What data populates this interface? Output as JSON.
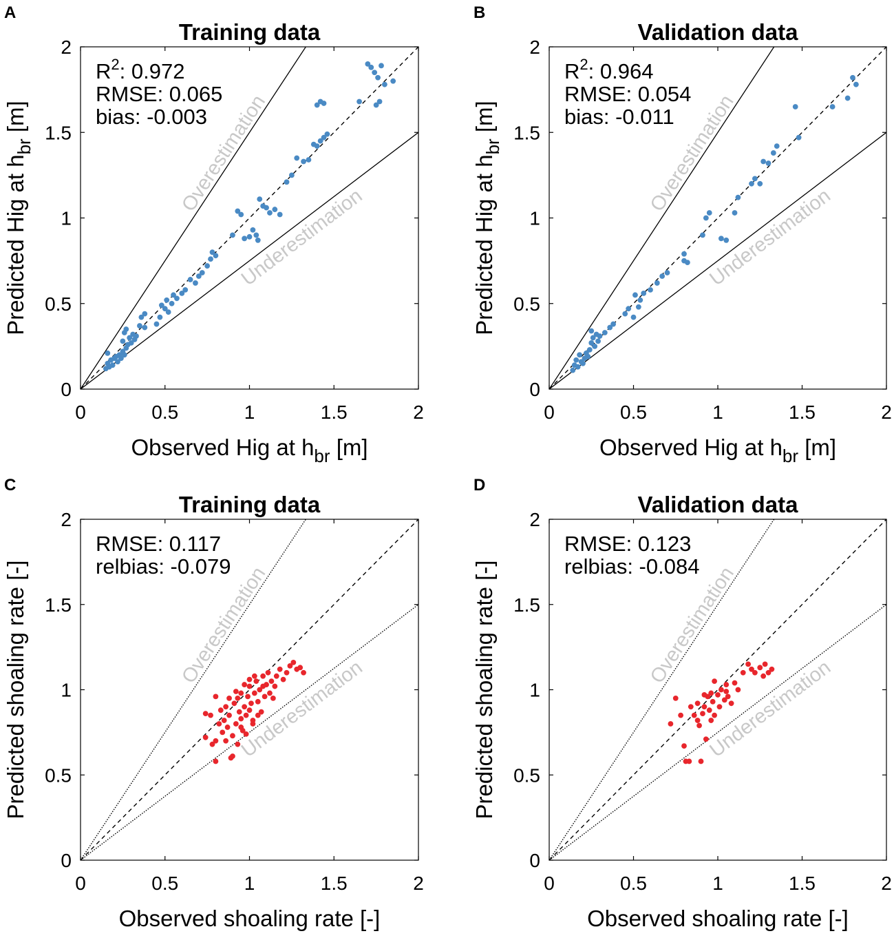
{
  "figure": {
    "colors": {
      "training": "#4a8ac4",
      "validation_shoal": "#e8262c",
      "annotation": "#c8c8c8",
      "axis": "#000000"
    }
  },
  "chart_data": [
    {
      "panel_letter": "A",
      "type": "scatter",
      "title": "Training data",
      "xlabel": "Observed Hig at h",
      "xlabel_sub": "br",
      "xlabel_unit": " [m]",
      "ylabel": "Predicted Hig at h",
      "ylabel_sub": "br",
      "ylabel_unit": " [m]",
      "xlim": [
        0,
        2
      ],
      "ylim": [
        0,
        2
      ],
      "xticks": [
        0,
        0.5,
        1,
        1.5,
        2
      ],
      "yticks": [
        0,
        0.5,
        1,
        1.5,
        2
      ],
      "xtick_labels": [
        "0",
        "0.5",
        "1",
        "1.5",
        "2"
      ],
      "ytick_labels": [
        "0",
        "0.5",
        "1",
        "1.5",
        "2"
      ],
      "stats": [
        {
          "label": "R",
          "sup": "2",
          "rest": ": 0.972"
        },
        {
          "label": "RMSE: 0.065",
          "sup": "",
          "rest": ""
        },
        {
          "label": "bias: -0.003",
          "sup": "",
          "rest": ""
        }
      ],
      "over_label": "Overestimation",
      "under_label": "Underestimation",
      "ref_style": "solid",
      "point_color": "#4a8ac4",
      "points": [
        [
          0.15,
          0.12
        ],
        [
          0.16,
          0.15
        ],
        [
          0.17,
          0.13
        ],
        [
          0.18,
          0.17
        ],
        [
          0.19,
          0.14
        ],
        [
          0.2,
          0.18
        ],
        [
          0.16,
          0.21
        ],
        [
          0.21,
          0.19
        ],
        [
          0.22,
          0.16
        ],
        [
          0.23,
          0.2
        ],
        [
          0.24,
          0.18
        ],
        [
          0.25,
          0.22
        ],
        [
          0.26,
          0.2
        ],
        [
          0.27,
          0.24
        ],
        [
          0.25,
          0.28
        ],
        [
          0.28,
          0.26
        ],
        [
          0.29,
          0.3
        ],
        [
          0.27,
          0.35
        ],
        [
          0.3,
          0.27
        ],
        [
          0.31,
          0.32
        ],
        [
          0.32,
          0.29
        ],
        [
          0.26,
          0.33
        ],
        [
          0.33,
          0.31
        ],
        [
          0.35,
          0.37
        ],
        [
          0.38,
          0.36
        ],
        [
          0.36,
          0.42
        ],
        [
          0.38,
          0.44
        ],
        [
          0.45,
          0.38
        ],
        [
          0.47,
          0.42
        ],
        [
          0.48,
          0.49
        ],
        [
          0.5,
          0.47
        ],
        [
          0.51,
          0.52
        ],
        [
          0.52,
          0.45
        ],
        [
          0.54,
          0.5
        ],
        [
          0.55,
          0.55
        ],
        [
          0.57,
          0.53
        ],
        [
          0.6,
          0.56
        ],
        [
          0.62,
          0.58
        ],
        [
          0.65,
          0.64
        ],
        [
          0.68,
          0.62
        ],
        [
          0.7,
          0.66
        ],
        [
          0.72,
          0.68
        ],
        [
          0.75,
          0.72
        ],
        [
          0.77,
          0.76
        ],
        [
          0.78,
          0.8
        ],
        [
          0.8,
          0.78
        ],
        [
          0.9,
          0.9
        ],
        [
          0.93,
          1.04
        ],
        [
          0.95,
          1.02
        ],
        [
          0.97,
          0.88
        ],
        [
          1.0,
          0.89
        ],
        [
          1.02,
          0.93
        ],
        [
          1.04,
          0.9
        ],
        [
          1.05,
          0.87
        ],
        [
          1.06,
          1.11
        ],
        [
          1.08,
          1.07
        ],
        [
          1.1,
          1.06
        ],
        [
          1.12,
          1.03
        ],
        [
          1.15,
          1.05
        ],
        [
          1.18,
          1.02
        ],
        [
          1.22,
          1.21
        ],
        [
          1.25,
          1.25
        ],
        [
          1.28,
          1.35
        ],
        [
          1.32,
          1.33
        ],
        [
          1.35,
          1.34
        ],
        [
          1.38,
          1.43
        ],
        [
          1.4,
          1.42
        ],
        [
          1.42,
          1.45
        ],
        [
          1.44,
          1.47
        ],
        [
          1.46,
          1.49
        ],
        [
          1.4,
          1.66
        ],
        [
          1.42,
          1.68
        ],
        [
          1.44,
          1.67
        ],
        [
          1.65,
          1.68
        ],
        [
          1.7,
          1.9
        ],
        [
          1.72,
          1.88
        ],
        [
          1.74,
          1.85
        ],
        [
          1.76,
          1.82
        ],
        [
          1.78,
          1.89
        ],
        [
          1.75,
          1.66
        ],
        [
          1.77,
          1.68
        ],
        [
          1.8,
          1.78
        ],
        [
          1.85,
          1.8
        ]
      ]
    },
    {
      "panel_letter": "B",
      "type": "scatter",
      "title": "Validation data",
      "xlabel": "Observed Hig at h",
      "xlabel_sub": "br",
      "xlabel_unit": " [m]",
      "ylabel": "Predicted Hig at h",
      "ylabel_sub": "br",
      "ylabel_unit": " [m]",
      "xlim": [
        0,
        2
      ],
      "ylim": [
        0,
        2
      ],
      "xticks": [
        0,
        0.5,
        1,
        1.5,
        2
      ],
      "yticks": [
        0,
        0.5,
        1,
        1.5,
        2
      ],
      "xtick_labels": [
        "0",
        "0.5",
        "1",
        "1.5",
        "2"
      ],
      "ytick_labels": [
        "0",
        "0.5",
        "1",
        "1.5",
        "2"
      ],
      "stats": [
        {
          "label": "R",
          "sup": "2",
          "rest": ": 0.964"
        },
        {
          "label": "RMSE: 0.054",
          "sup": "",
          "rest": ""
        },
        {
          "label": "bias: -0.011",
          "sup": "",
          "rest": ""
        }
      ],
      "over_label": "Overestimation",
      "under_label": "Underestimation",
      "ref_style": "solid",
      "point_color": "#4a8ac4",
      "points": [
        [
          0.14,
          0.11
        ],
        [
          0.15,
          0.14
        ],
        [
          0.16,
          0.17
        ],
        [
          0.17,
          0.13
        ],
        [
          0.18,
          0.2
        ],
        [
          0.19,
          0.16
        ],
        [
          0.2,
          0.15
        ],
        [
          0.21,
          0.18
        ],
        [
          0.22,
          0.21
        ],
        [
          0.23,
          0.19
        ],
        [
          0.24,
          0.23
        ],
        [
          0.25,
          0.27
        ],
        [
          0.26,
          0.3
        ],
        [
          0.27,
          0.25
        ],
        [
          0.28,
          0.32
        ],
        [
          0.25,
          0.34
        ],
        [
          0.29,
          0.28
        ],
        [
          0.3,
          0.31
        ],
        [
          0.33,
          0.33
        ],
        [
          0.36,
          0.36
        ],
        [
          0.38,
          0.38
        ],
        [
          0.45,
          0.44
        ],
        [
          0.47,
          0.47
        ],
        [
          0.5,
          0.42
        ],
        [
          0.51,
          0.55
        ],
        [
          0.53,
          0.48
        ],
        [
          0.54,
          0.52
        ],
        [
          0.56,
          0.56
        ],
        [
          0.6,
          0.58
        ],
        [
          0.64,
          0.62
        ],
        [
          0.67,
          0.66
        ],
        [
          0.7,
          0.68
        ],
        [
          0.8,
          0.75
        ],
        [
          0.8,
          0.79
        ],
        [
          0.82,
          0.74
        ],
        [
          0.91,
          0.9
        ],
        [
          0.93,
          1.0
        ],
        [
          0.95,
          1.03
        ],
        [
          1.02,
          0.88
        ],
        [
          1.05,
          0.87
        ],
        [
          1.1,
          1.03
        ],
        [
          1.12,
          1.12
        ],
        [
          1.2,
          1.2
        ],
        [
          1.22,
          1.23
        ],
        [
          1.25,
          1.2
        ],
        [
          1.27,
          1.33
        ],
        [
          1.3,
          1.32
        ],
        [
          1.33,
          1.38
        ],
        [
          1.35,
          1.42
        ],
        [
          1.46,
          1.65
        ],
        [
          1.48,
          1.47
        ],
        [
          1.68,
          1.65
        ],
        [
          1.77,
          1.7
        ],
        [
          1.8,
          1.82
        ],
        [
          1.82,
          1.78
        ]
      ]
    },
    {
      "panel_letter": "C",
      "type": "scatter",
      "title": "Training data",
      "xlabel": "Observed shoaling rate [-]",
      "xlabel_sub": "",
      "xlabel_unit": "",
      "ylabel": "Predicted shoaling rate [-]",
      "ylabel_sub": "",
      "ylabel_unit": "",
      "xlim": [
        0,
        2
      ],
      "ylim": [
        0,
        2
      ],
      "xticks": [
        0,
        0.5,
        1,
        1.5,
        2
      ],
      "yticks": [
        0,
        0.5,
        1,
        1.5,
        2
      ],
      "xtick_labels": [
        "0",
        "0.5",
        "1",
        "1.5",
        "2"
      ],
      "ytick_labels": [
        "0",
        "0.5",
        "1",
        "1.5",
        "2"
      ],
      "stats": [
        {
          "label": "RMSE: 0.117",
          "sup": "",
          "rest": ""
        },
        {
          "label": "relbias: -0.079",
          "sup": "",
          "rest": ""
        }
      ],
      "over_label": "Overestimation",
      "under_label": "Underestimation",
      "ref_style": "dotted",
      "point_color": "#e8262c",
      "points": [
        [
          0.74,
          0.86
        ],
        [
          0.74,
          0.72
        ],
        [
          0.77,
          0.85
        ],
        [
          0.78,
          0.68
        ],
        [
          0.8,
          0.58
        ],
        [
          0.8,
          0.7
        ],
        [
          0.82,
          0.8
        ],
        [
          0.83,
          0.88
        ],
        [
          0.84,
          0.75
        ],
        [
          0.85,
          0.82
        ],
        [
          0.86,
          0.9
        ],
        [
          0.87,
          0.78
        ],
        [
          0.88,
          0.85
        ],
        [
          0.89,
          0.6
        ],
        [
          0.9,
          0.61
        ],
        [
          0.9,
          0.73
        ],
        [
          0.91,
          0.92
        ],
        [
          0.92,
          0.8
        ],
        [
          0.93,
          0.95
        ],
        [
          0.94,
          0.87
        ],
        [
          0.95,
          0.83
        ],
        [
          0.95,
          0.98
        ],
        [
          0.96,
          0.76
        ],
        [
          0.97,
          0.9
        ],
        [
          0.98,
          0.85
        ],
        [
          0.99,
          0.96
        ],
        [
          1.0,
          0.88
        ],
        [
          1.0,
          1.02
        ],
        [
          1.01,
          0.92
        ],
        [
          1.02,
          0.82
        ],
        [
          1.03,
          0.98
        ],
        [
          1.04,
          1.05
        ],
        [
          1.05,
          0.93
        ],
        [
          1.06,
          1.0
        ],
        [
          1.07,
          0.87
        ],
        [
          1.08,
          1.08
        ],
        [
          1.09,
          0.96
        ],
        [
          1.1,
          1.03
        ],
        [
          1.11,
          1.1
        ],
        [
          1.12,
          0.98
        ],
        [
          1.13,
          1.05
        ],
        [
          1.15,
          1.02
        ],
        [
          1.16,
          1.08
        ],
        [
          1.18,
          1.12
        ],
        [
          1.2,
          1.06
        ],
        [
          1.22,
          1.1
        ],
        [
          1.24,
          1.14
        ],
        [
          1.26,
          1.16
        ],
        [
          1.28,
          1.12
        ],
        [
          1.3,
          1.13
        ],
        [
          1.32,
          1.1
        ],
        [
          0.95,
          0.78
        ],
        [
          0.98,
          0.74
        ],
        [
          1.02,
          0.8
        ],
        [
          1.05,
          0.85
        ],
        [
          0.88,
          0.95
        ],
        [
          0.92,
          0.99
        ],
        [
          1.0,
          1.06
        ],
        [
          1.08,
          1.02
        ],
        [
          1.14,
          0.95
        ],
        [
          0.8,
          0.96
        ],
        [
          0.86,
          0.7
        ],
        [
          0.93,
          0.68
        ],
        [
          0.97,
          1.03
        ],
        [
          1.03,
          1.08
        ]
      ]
    },
    {
      "panel_letter": "D",
      "type": "scatter",
      "title": "Validation data",
      "xlabel": "Observed shoaling rate [-]",
      "xlabel_sub": "",
      "xlabel_unit": "",
      "ylabel": "Predicted shoaling rate [-]",
      "ylabel_sub": "",
      "ylabel_unit": "",
      "xlim": [
        0,
        2
      ],
      "ylim": [
        0,
        2
      ],
      "xticks": [
        0,
        0.5,
        1,
        1.5,
        2
      ],
      "yticks": [
        0,
        0.5,
        1,
        1.5,
        2
      ],
      "xtick_labels": [
        "0",
        "0.5",
        "1",
        "1.5",
        "2"
      ],
      "ytick_labels": [
        "0",
        "0.5",
        "1",
        "1.5",
        "2"
      ],
      "stats": [
        {
          "label": "RMSE: 0.123",
          "sup": "",
          "rest": ""
        },
        {
          "label": "relbias: -0.084",
          "sup": "",
          "rest": ""
        }
      ],
      "over_label": "Overestimation",
      "under_label": "Underestimation",
      "ref_style": "dotted",
      "point_color": "#e8262c",
      "points": [
        [
          0.72,
          0.8
        ],
        [
          0.75,
          0.95
        ],
        [
          0.78,
          0.85
        ],
        [
          0.8,
          0.67
        ],
        [
          0.81,
          0.58
        ],
        [
          0.83,
          0.58
        ],
        [
          0.84,
          0.9
        ],
        [
          0.86,
          0.85
        ],
        [
          0.88,
          0.82
        ],
        [
          0.88,
          0.92
        ],
        [
          0.89,
          0.79
        ],
        [
          0.9,
          0.58
        ],
        [
          0.91,
          0.86
        ],
        [
          0.92,
          0.9
        ],
        [
          0.93,
          0.71
        ],
        [
          0.94,
          0.96
        ],
        [
          0.95,
          0.88
        ],
        [
          0.96,
          0.98
        ],
        [
          0.97,
          0.93
        ],
        [
          0.98,
          0.85
        ],
        [
          1.0,
          0.97
        ],
        [
          1.01,
          0.9
        ],
        [
          1.02,
          1.0
        ],
        [
          1.04,
          0.94
        ],
        [
          1.05,
          1.03
        ],
        [
          1.06,
          0.96
        ],
        [
          1.08,
          0.92
        ],
        [
          1.1,
          1.04
        ],
        [
          1.12,
          1.0
        ],
        [
          1.15,
          1.1
        ],
        [
          1.18,
          1.15
        ],
        [
          1.2,
          1.12
        ],
        [
          1.22,
          1.1
        ],
        [
          1.25,
          1.13
        ],
        [
          1.27,
          1.08
        ],
        [
          1.28,
          1.15
        ],
        [
          1.3,
          1.1
        ],
        [
          1.32,
          1.12
        ],
        [
          1.05,
          0.99
        ],
        [
          0.98,
          1.05
        ],
        [
          0.92,
          0.97
        ],
        [
          0.96,
          0.82
        ]
      ]
    }
  ]
}
